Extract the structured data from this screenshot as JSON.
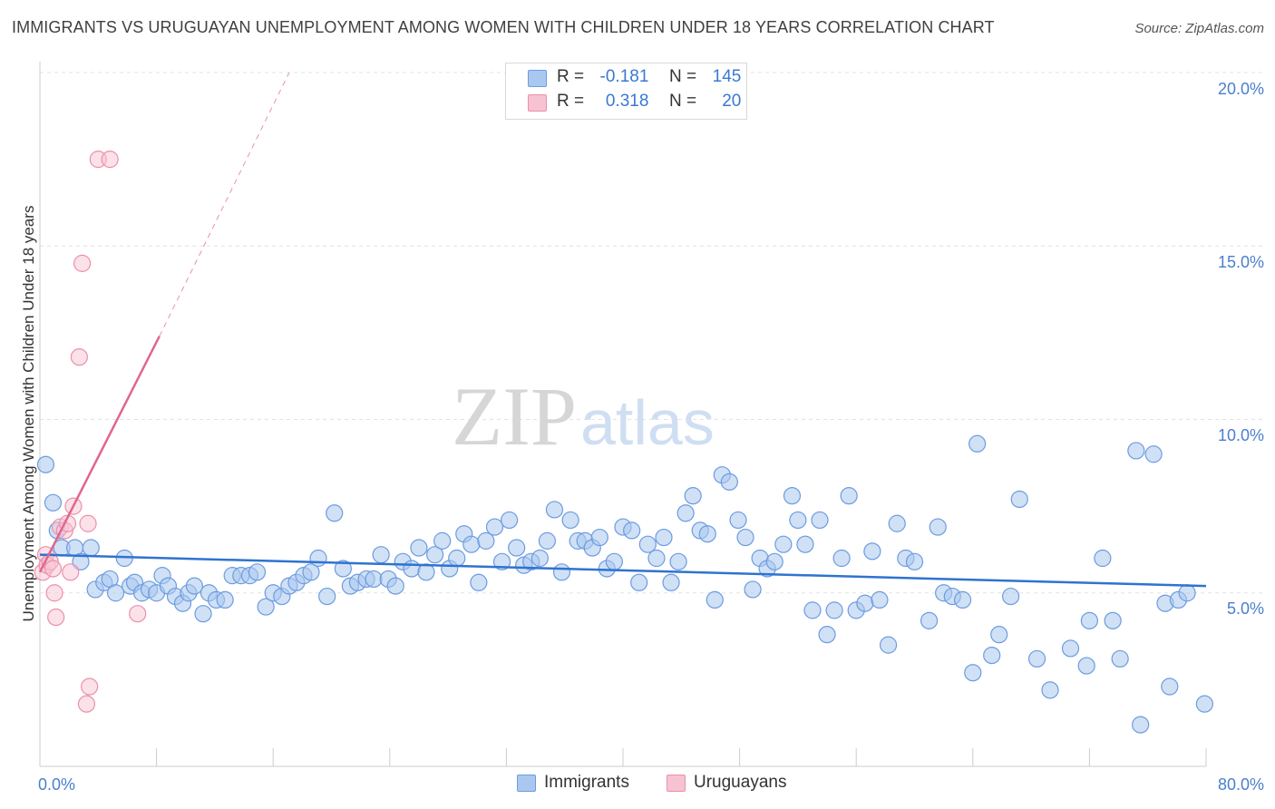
{
  "title": "IMMIGRANTS VS URUGUAYAN UNEMPLOYMENT AMONG WOMEN WITH CHILDREN UNDER 18 YEARS CORRELATION CHART",
  "source": "Source: ZipAtlas.com",
  "watermark": {
    "part1": "ZIP",
    "part2": "atlas"
  },
  "legend": {
    "row1": {
      "r_label": "R =",
      "r_value": "-0.181",
      "n_label": "N =",
      "n_value": "145"
    },
    "row2": {
      "r_label": "R =",
      "r_value": "0.318",
      "n_label": "N =",
      "n_value": "20"
    }
  },
  "bottom_legend": {
    "series1": "Immigrants",
    "series2": "Uruguayans"
  },
  "colors": {
    "immigrants_fill": "#aac8ef",
    "immigrants_stroke": "#6c9be0",
    "immigrants_line": "#2f73d0",
    "uruguayans_fill": "#f7c3d2",
    "uruguayans_stroke": "#ec8fac",
    "uruguayans_line": "#e06690",
    "axis_text": "#4a7fcf",
    "grid": "#e3e3e3"
  },
  "chart_data": {
    "type": "scatter",
    "title": "IMMIGRANTS VS URUGUAYAN UNEMPLOYMENT AMONG WOMEN WITH CHILDREN UNDER 18 YEARS CORRELATION CHART",
    "xlabel": "",
    "ylabel": "Unemployment Among Women with Children Under 18 years",
    "xlim": [
      0,
      80
    ],
    "ylim": [
      0,
      20
    ],
    "x_tick_labels": [
      "0.0%",
      "80.0%"
    ],
    "y_ticks": [
      5,
      10,
      15,
      20
    ],
    "y_tick_labels": [
      "5.0%",
      "10.0%",
      "15.0%",
      "20.0%"
    ],
    "series": [
      {
        "name": "Immigrants",
        "r": -0.181,
        "n": 145,
        "trend": {
          "x": [
            0,
            80
          ],
          "y": [
            6.1,
            5.2
          ]
        },
        "points": [
          [
            0.4,
            8.7
          ],
          [
            0.9,
            7.6
          ],
          [
            1.2,
            6.8
          ],
          [
            1.5,
            6.3
          ],
          [
            2.4,
            6.3
          ],
          [
            2.8,
            5.9
          ],
          [
            3.5,
            6.3
          ],
          [
            3.8,
            5.1
          ],
          [
            4.4,
            5.3
          ],
          [
            4.8,
            5.4
          ],
          [
            5.2,
            5.0
          ],
          [
            5.8,
            6.0
          ],
          [
            6.2,
            5.2
          ],
          [
            6.5,
            5.3
          ],
          [
            7.0,
            5.0
          ],
          [
            7.5,
            5.1
          ],
          [
            8.0,
            5.0
          ],
          [
            8.4,
            5.5
          ],
          [
            8.8,
            5.2
          ],
          [
            9.3,
            4.9
          ],
          [
            9.8,
            4.7
          ],
          [
            10.2,
            5.0
          ],
          [
            10.6,
            5.2
          ],
          [
            11.2,
            4.4
          ],
          [
            11.6,
            5.0
          ],
          [
            12.1,
            4.8
          ],
          [
            12.7,
            4.8
          ],
          [
            13.2,
            5.5
          ],
          [
            13.8,
            5.5
          ],
          [
            14.4,
            5.5
          ],
          [
            14.9,
            5.6
          ],
          [
            15.5,
            4.6
          ],
          [
            16.0,
            5.0
          ],
          [
            16.6,
            4.9
          ],
          [
            17.1,
            5.2
          ],
          [
            17.6,
            5.3
          ],
          [
            18.1,
            5.5
          ],
          [
            18.6,
            5.6
          ],
          [
            19.1,
            6.0
          ],
          [
            19.7,
            4.9
          ],
          [
            20.2,
            7.3
          ],
          [
            20.8,
            5.7
          ],
          [
            21.3,
            5.2
          ],
          [
            21.8,
            5.3
          ],
          [
            22.4,
            5.4
          ],
          [
            22.9,
            5.4
          ],
          [
            23.4,
            6.1
          ],
          [
            23.9,
            5.4
          ],
          [
            24.4,
            5.2
          ],
          [
            24.9,
            5.9
          ],
          [
            25.5,
            5.7
          ],
          [
            26.0,
            6.3
          ],
          [
            26.5,
            5.6
          ],
          [
            27.1,
            6.1
          ],
          [
            27.6,
            6.5
          ],
          [
            28.1,
            5.7
          ],
          [
            28.6,
            6.0
          ],
          [
            29.1,
            6.7
          ],
          [
            29.6,
            6.4
          ],
          [
            30.1,
            5.3
          ],
          [
            30.6,
            6.5
          ],
          [
            31.2,
            6.9
          ],
          [
            31.7,
            5.9
          ],
          [
            32.2,
            7.1
          ],
          [
            32.7,
            6.3
          ],
          [
            33.2,
            5.8
          ],
          [
            33.7,
            5.9
          ],
          [
            34.3,
            6.0
          ],
          [
            34.8,
            6.5
          ],
          [
            35.3,
            7.4
          ],
          [
            35.8,
            5.6
          ],
          [
            36.4,
            7.1
          ],
          [
            36.9,
            6.5
          ],
          [
            37.4,
            6.5
          ],
          [
            37.9,
            6.3
          ],
          [
            38.4,
            6.6
          ],
          [
            38.9,
            5.7
          ],
          [
            39.4,
            5.9
          ],
          [
            40.0,
            6.9
          ],
          [
            40.6,
            6.8
          ],
          [
            41.1,
            5.3
          ],
          [
            41.7,
            6.4
          ],
          [
            42.3,
            6.0
          ],
          [
            42.8,
            6.6
          ],
          [
            43.3,
            5.3
          ],
          [
            43.8,
            5.9
          ],
          [
            44.3,
            7.3
          ],
          [
            44.8,
            7.8
          ],
          [
            45.3,
            6.8
          ],
          [
            45.8,
            6.7
          ],
          [
            46.3,
            4.8
          ],
          [
            46.8,
            8.4
          ],
          [
            47.3,
            8.2
          ],
          [
            47.9,
            7.1
          ],
          [
            48.4,
            6.6
          ],
          [
            48.9,
            5.1
          ],
          [
            49.4,
            6.0
          ],
          [
            49.9,
            5.7
          ],
          [
            50.4,
            5.9
          ],
          [
            51.0,
            6.4
          ],
          [
            51.6,
            7.8
          ],
          [
            52.0,
            7.1
          ],
          [
            52.5,
            6.4
          ],
          [
            53.0,
            4.5
          ],
          [
            53.5,
            7.1
          ],
          [
            54.0,
            3.8
          ],
          [
            54.5,
            4.5
          ],
          [
            55.0,
            6.0
          ],
          [
            55.5,
            7.8
          ],
          [
            56.0,
            4.5
          ],
          [
            56.6,
            4.7
          ],
          [
            57.1,
            6.2
          ],
          [
            57.6,
            4.8
          ],
          [
            58.2,
            3.5
          ],
          [
            58.8,
            7.0
          ],
          [
            59.4,
            6.0
          ],
          [
            60.0,
            5.9
          ],
          [
            61.0,
            4.2
          ],
          [
            61.6,
            6.9
          ],
          [
            62.0,
            5.0
          ],
          [
            62.6,
            4.9
          ],
          [
            63.3,
            4.8
          ],
          [
            64.0,
            2.7
          ],
          [
            64.3,
            9.3
          ],
          [
            65.3,
            3.2
          ],
          [
            65.8,
            3.8
          ],
          [
            66.6,
            4.9
          ],
          [
            67.2,
            7.7
          ],
          [
            68.4,
            3.1
          ],
          [
            69.3,
            2.2
          ],
          [
            70.7,
            3.4
          ],
          [
            71.8,
            2.9
          ],
          [
            72.0,
            4.2
          ],
          [
            72.9,
            6.0
          ],
          [
            73.6,
            4.2
          ],
          [
            74.1,
            3.1
          ],
          [
            75.2,
            9.1
          ],
          [
            75.5,
            1.2
          ],
          [
            76.4,
            9.0
          ],
          [
            77.2,
            4.7
          ],
          [
            77.5,
            2.3
          ],
          [
            78.1,
            4.8
          ],
          [
            78.7,
            5.0
          ],
          [
            79.9,
            1.8
          ]
        ]
      },
      {
        "name": "Uruguayans",
        "r": 0.318,
        "n": 20,
        "trend": {
          "x": [
            0,
            8.2
          ],
          "y": [
            5.6,
            12.4
          ]
        },
        "trend_extended": {
          "x": [
            8.2,
            17.1
          ],
          "y": [
            12.4,
            20.0
          ]
        },
        "points": [
          [
            0.2,
            5.6
          ],
          [
            0.4,
            6.1
          ],
          [
            0.5,
            5.8
          ],
          [
            0.7,
            5.9
          ],
          [
            0.9,
            5.7
          ],
          [
            1.1,
            4.3
          ],
          [
            1.0,
            5.0
          ],
          [
            1.4,
            6.9
          ],
          [
            1.7,
            6.8
          ],
          [
            1.9,
            7.0
          ],
          [
            2.1,
            5.6
          ],
          [
            2.3,
            7.5
          ],
          [
            2.7,
            11.8
          ],
          [
            2.9,
            14.5
          ],
          [
            3.2,
            1.8
          ],
          [
            3.4,
            2.3
          ],
          [
            4.0,
            17.5
          ],
          [
            4.8,
            17.5
          ],
          [
            3.3,
            7.0
          ],
          [
            6.7,
            4.4
          ]
        ]
      }
    ]
  }
}
